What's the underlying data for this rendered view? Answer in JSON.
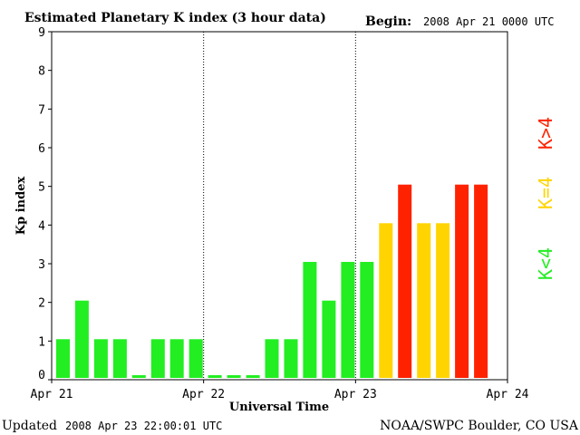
{
  "chart_data": {
    "type": "bar",
    "title": "Estimated Planetary K index (3 hour data)",
    "begin_label": "Begin:",
    "begin_value": "2008 Apr 21 0000 UTC",
    "xlabel": "Universal Time",
    "ylabel": "Kp index",
    "ylim": [
      0,
      9
    ],
    "yticks": [
      "0",
      "1",
      "2",
      "3",
      "4",
      "5",
      "6",
      "7",
      "8",
      "9"
    ],
    "xticks": [
      "Apr 21",
      "Apr 22",
      "Apr 23",
      "Apr 24"
    ],
    "bars_per_day": 8,
    "days": 3,
    "values": [
      1,
      2,
      1,
      1,
      0,
      1,
      1,
      1,
      0,
      0,
      0,
      1,
      1,
      3,
      2,
      3,
      3,
      4,
      5,
      4,
      4,
      5,
      5
    ],
    "legend": [
      {
        "label": "K<4",
        "color": "#22ee22"
      },
      {
        "label": "K=4",
        "color": "#ffd400"
      },
      {
        "label": "K>4",
        "color": "#ff2200"
      }
    ],
    "colors": {
      "low": "#22ee22",
      "mid": "#ffd400",
      "high": "#ff2200",
      "divider": "#000000"
    }
  },
  "footer": {
    "updated_label": "Updated",
    "updated_value": "2008 Apr 23 22:00:01 UTC",
    "source": "NOAA/SWPC Boulder, CO USA"
  }
}
